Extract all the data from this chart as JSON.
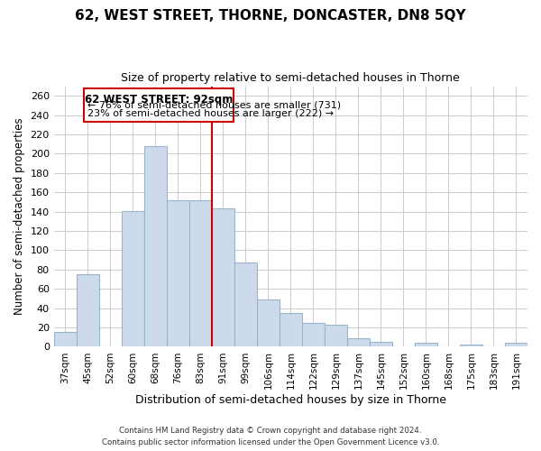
{
  "title": "62, WEST STREET, THORNE, DONCASTER, DN8 5QY",
  "subtitle": "Size of property relative to semi-detached houses in Thorne",
  "xlabel": "Distribution of semi-detached houses by size in Thorne",
  "ylabel": "Number of semi-detached properties",
  "bar_labels": [
    "37sqm",
    "45sqm",
    "52sqm",
    "60sqm",
    "68sqm",
    "76sqm",
    "83sqm",
    "91sqm",
    "99sqm",
    "106sqm",
    "114sqm",
    "122sqm",
    "129sqm",
    "137sqm",
    "145sqm",
    "152sqm",
    "160sqm",
    "168sqm",
    "175sqm",
    "183sqm",
    "191sqm"
  ],
  "bar_heights": [
    15,
    75,
    0,
    141,
    208,
    152,
    152,
    143,
    87,
    49,
    35,
    25,
    23,
    9,
    5,
    0,
    4,
    0,
    2,
    0,
    4
  ],
  "bar_color": "#ccdaeb",
  "bar_edge_color": "#9ab4cc",
  "vline_color": "#cc0000",
  "annotation_title": "62 WEST STREET: 92sqm",
  "annotation_line1": "← 76% of semi-detached houses are smaller (731)",
  "annotation_line2": "23% of semi-detached houses are larger (222) →",
  "annotation_box_color": "#ffffff",
  "annotation_box_edge": "#cc0000",
  "footer_line1": "Contains HM Land Registry data © Crown copyright and database right 2024.",
  "footer_line2": "Contains public sector information licensed under the Open Government Licence v3.0.",
  "ylim": [
    0,
    270
  ],
  "yticks": [
    0,
    20,
    40,
    60,
    80,
    100,
    120,
    140,
    160,
    180,
    200,
    220,
    240,
    260
  ],
  "background_color": "#ffffff",
  "grid_color": "#cccccc",
  "vline_bar_index": 7
}
